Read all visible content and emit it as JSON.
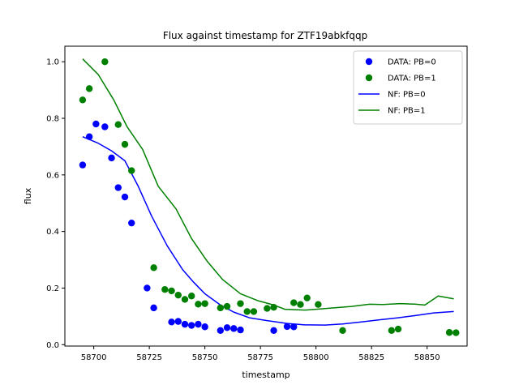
{
  "chart_data": {
    "type": "scatter",
    "title": "Flux against timestamp for ZTF19abkfqqp",
    "xlabel": "timestamp",
    "ylabel": "flux",
    "xlim": [
      58687,
      58868
    ],
    "ylim": [
      -0.005,
      1.055
    ],
    "xticks": [
      58700,
      58725,
      58750,
      58775,
      58800,
      58825,
      58850
    ],
    "yticks": [
      0.0,
      0.2,
      0.4,
      0.6,
      0.8,
      1.0
    ],
    "ytick_labels": [
      "0.0",
      "0.2",
      "0.4",
      "0.6",
      "0.8",
      "1.0"
    ],
    "grid": false,
    "legend_position": "top-right",
    "series": [
      {
        "name": "DATA: PB=0",
        "kind": "scatter",
        "color": "#0000ff",
        "points": [
          [
            58695,
            0.635
          ],
          [
            58698,
            0.735
          ],
          [
            58701,
            0.78
          ],
          [
            58705,
            0.77
          ],
          [
            58708,
            0.66
          ],
          [
            58711,
            0.555
          ],
          [
            58714,
            0.522
          ],
          [
            58717,
            0.43
          ],
          [
            58724,
            0.2
          ],
          [
            58727,
            0.13
          ],
          [
            58735,
            0.08
          ],
          [
            58738,
            0.082
          ],
          [
            58741,
            0.072
          ],
          [
            58744,
            0.068
          ],
          [
            58747,
            0.072
          ],
          [
            58750,
            0.063
          ],
          [
            58757,
            0.05
          ],
          [
            58760,
            0.06
          ],
          [
            58763,
            0.057
          ],
          [
            58766,
            0.052
          ],
          [
            58781,
            0.05
          ],
          [
            58787,
            0.064
          ],
          [
            58790,
            0.063
          ]
        ]
      },
      {
        "name": "DATA: PB=1",
        "kind": "scatter",
        "color": "#008000",
        "points": [
          [
            58695,
            0.865
          ],
          [
            58698,
            0.905
          ],
          [
            58705,
            1.0
          ],
          [
            58711,
            0.778
          ],
          [
            58714,
            0.708
          ],
          [
            58717,
            0.615
          ],
          [
            58727,
            0.272
          ],
          [
            58732,
            0.195
          ],
          [
            58735,
            0.19
          ],
          [
            58738,
            0.175
          ],
          [
            58741,
            0.16
          ],
          [
            58744,
            0.172
          ],
          [
            58747,
            0.143
          ],
          [
            58750,
            0.145
          ],
          [
            58757,
            0.13
          ],
          [
            58760,
            0.135
          ],
          [
            58766,
            0.145
          ],
          [
            58769,
            0.117
          ],
          [
            58772,
            0.117
          ],
          [
            58778,
            0.128
          ],
          [
            58781,
            0.132
          ],
          [
            58790,
            0.148
          ],
          [
            58793,
            0.142
          ],
          [
            58796,
            0.165
          ],
          [
            58801,
            0.142
          ],
          [
            58812,
            0.05
          ],
          [
            58834,
            0.05
          ],
          [
            58837,
            0.055
          ],
          [
            58860,
            0.043
          ],
          [
            58863,
            0.042
          ]
        ]
      },
      {
        "name": "NF: PB=0",
        "kind": "line",
        "color": "#0000ff",
        "points": [
          [
            58695,
            0.735
          ],
          [
            58702,
            0.712
          ],
          [
            58708,
            0.685
          ],
          [
            58714,
            0.65
          ],
          [
            58720,
            0.56
          ],
          [
            58726,
            0.455
          ],
          [
            58733,
            0.35
          ],
          [
            58740,
            0.265
          ],
          [
            58745,
            0.22
          ],
          [
            58750,
            0.18
          ],
          [
            58757,
            0.14
          ],
          [
            58763,
            0.115
          ],
          [
            58770,
            0.095
          ],
          [
            58778,
            0.085
          ],
          [
            58787,
            0.075
          ],
          [
            58795,
            0.07
          ],
          [
            58804,
            0.069
          ],
          [
            58812,
            0.073
          ],
          [
            58820,
            0.08
          ],
          [
            58829,
            0.088
          ],
          [
            58837,
            0.095
          ],
          [
            58845,
            0.103
          ],
          [
            58853,
            0.112
          ],
          [
            58862,
            0.117
          ]
        ]
      },
      {
        "name": "NF: PB=1",
        "kind": "line",
        "color": "#008000",
        "points": [
          [
            58695,
            1.01
          ],
          [
            58702,
            0.955
          ],
          [
            58709,
            0.865
          ],
          [
            58715,
            0.77
          ],
          [
            58722,
            0.69
          ],
          [
            58729,
            0.56
          ],
          [
            58737,
            0.48
          ],
          [
            58744,
            0.375
          ],
          [
            58751,
            0.295
          ],
          [
            58758,
            0.23
          ],
          [
            58766,
            0.18
          ],
          [
            58774,
            0.155
          ],
          [
            58781,
            0.14
          ],
          [
            58786,
            0.125
          ],
          [
            58795,
            0.122
          ],
          [
            58800,
            0.125
          ],
          [
            58808,
            0.13
          ],
          [
            58816,
            0.135
          ],
          [
            58824,
            0.143
          ],
          [
            58830,
            0.142
          ],
          [
            58838,
            0.145
          ],
          [
            58845,
            0.143
          ],
          [
            58849,
            0.14
          ],
          [
            58855,
            0.172
          ],
          [
            58862,
            0.162
          ]
        ]
      }
    ]
  }
}
